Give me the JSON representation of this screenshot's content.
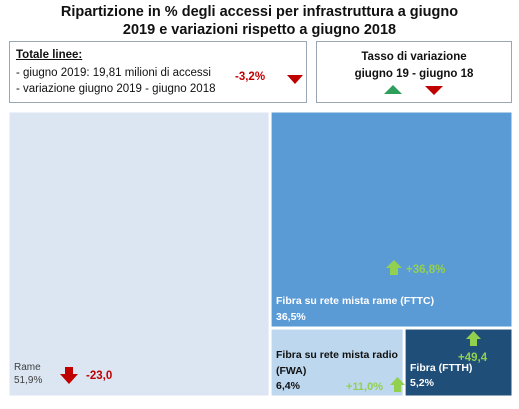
{
  "title_line1": "Ripartizione in % degli accessi per infrastruttura a giugno",
  "title_line2": "2019 e variazioni rispetto a giugno 2018",
  "totals_box": {
    "heading": "Totale linee:",
    "line1": "- giugno 2019: 19,81 milioni di accessi",
    "line2": "- variazione giugno 2019 - giugno 2018",
    "change": "-3,2%"
  },
  "legend_box": {
    "title": "Tasso  di variazione",
    "subtitle": "giugno 19 - giugno 18"
  },
  "colors": {
    "rame": "#dce6f2",
    "fttc": "#5b9bd5",
    "fwa": "#bdd7ee",
    "ftth": "#1f4e79",
    "up_arrow": "#92d050",
    "down_arrow": "#c00000"
  },
  "icons": [
    "arrow-up-icon",
    "arrow-down-icon"
  ],
  "chart_data": {
    "type": "treemap",
    "title": "Ripartizione in % degli accessi per infrastruttura a giugno 2019 e variazioni rispetto a giugno 2018",
    "series": [
      {
        "name": "Rame",
        "share": 51.9,
        "share_label": "51,9%",
        "change": -23.0,
        "change_label": "-23,0"
      },
      {
        "name": "Fibra su rete mista rame (FTTC)",
        "share": 36.5,
        "share_label": "36,5%",
        "change": 36.8,
        "change_label": "+36,8%"
      },
      {
        "name": "Fibra su rete mista radio (FWA)",
        "name_line1": "Fibra su rete mista radio",
        "name_line2": "(FWA)",
        "share": 6.4,
        "share_label": "6,4%",
        "change": 11.0,
        "change_label": "+11,0%"
      },
      {
        "name": "Fibra (FTTH)",
        "share": 5.2,
        "share_label": "5,2%",
        "change": 49.4,
        "change_label": "+49,4"
      }
    ]
  }
}
